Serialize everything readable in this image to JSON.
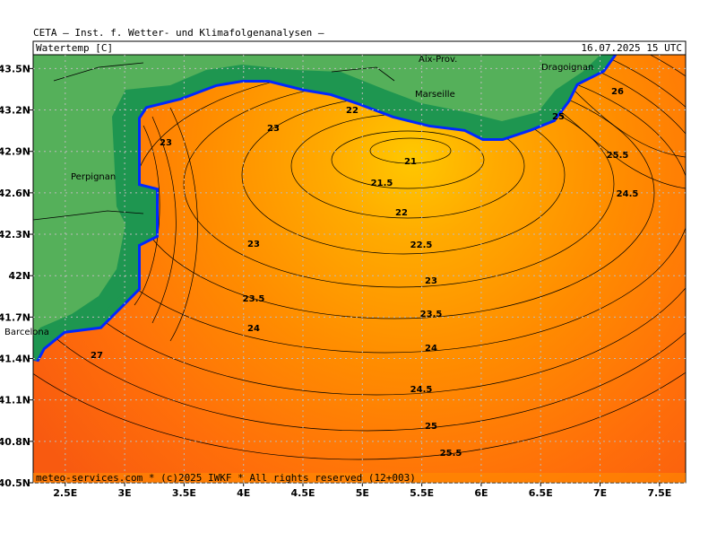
{
  "header": {
    "institute": "CETA – Inst. f. Wetter- und Klimafolgenanalysen –",
    "title": "Watertemp [C]",
    "valid": "16.07.2025 15 UTC"
  },
  "map": {
    "lon_range": [
      2.23,
      7.72
    ],
    "lat_range": [
      40.5,
      43.6
    ],
    "lon_ticks": [
      {
        "value": 2.5,
        "label": "2.5E"
      },
      {
        "value": 3,
        "label": "3E"
      },
      {
        "value": 3.5,
        "label": "3.5E"
      },
      {
        "value": 4,
        "label": "4E"
      },
      {
        "value": 4.5,
        "label": "4.5E"
      },
      {
        "value": 5,
        "label": "5E"
      },
      {
        "value": 5.5,
        "label": "5.5E"
      },
      {
        "value": 6,
        "label": "6E"
      },
      {
        "value": 6.5,
        "label": "6.5E"
      },
      {
        "value": 7,
        "label": "7E"
      },
      {
        "value": 7.5,
        "label": "7.5E"
      }
    ],
    "lat_ticks": [
      {
        "value": 43.5,
        "label": "43.5N"
      },
      {
        "value": 43.2,
        "label": "43.2N"
      },
      {
        "value": 42.9,
        "label": "42.9N"
      },
      {
        "value": 42.6,
        "label": "42.6N"
      },
      {
        "value": 42.3,
        "label": "42.3N"
      },
      {
        "value": 42,
        "label": "42N"
      },
      {
        "value": 41.7,
        "label": "41.7N"
      },
      {
        "value": 41.4,
        "label": "41.4N"
      },
      {
        "value": 41.1,
        "label": "41.1N"
      },
      {
        "value": 40.8,
        "label": "40.8N"
      },
      {
        "value": 40.5,
        "label": "40.5N"
      }
    ],
    "places": [
      "Aix-Prov.",
      "Marseille",
      "Dragoignan",
      "Perpignan",
      "Barcelona"
    ],
    "contour_labels": [
      "21",
      "21.5",
      "22",
      "22.5",
      "23",
      "23.5",
      "24",
      "24.5",
      "25",
      "25.5",
      "23",
      "22",
      "23",
      "23.5",
      "24",
      "23",
      "26",
      "25.5",
      "24.5",
      "25",
      "27"
    ]
  },
  "footer": "meteo-services.com * (c)2025 IWKF * All rights reserved (12+003)"
}
